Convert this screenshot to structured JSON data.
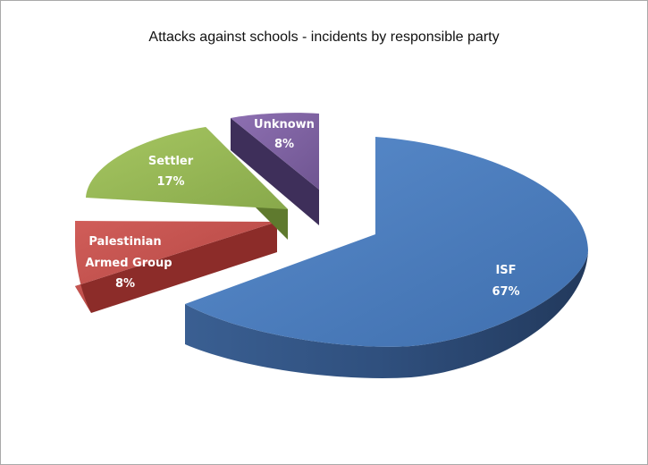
{
  "chart_data": {
    "type": "pie",
    "title": "Attacks against schools - incidents by responsible party",
    "style": "3d-exploded",
    "slices": [
      {
        "label": "ISF",
        "percent_label": "67%",
        "value": 67,
        "color": "#4f81bd"
      },
      {
        "label": "Palestinian Armed Group",
        "label_lines": [
          "Palestinian",
          "Armed Group"
        ],
        "percent_label": "8%",
        "value": 8,
        "color": "#c0504d"
      },
      {
        "label": "Settler",
        "percent_label": "17%",
        "value": 17,
        "color": "#9bbb59"
      },
      {
        "label": "Unknown",
        "percent_label": "8%",
        "value": 8,
        "color": "#8064a2"
      }
    ]
  }
}
